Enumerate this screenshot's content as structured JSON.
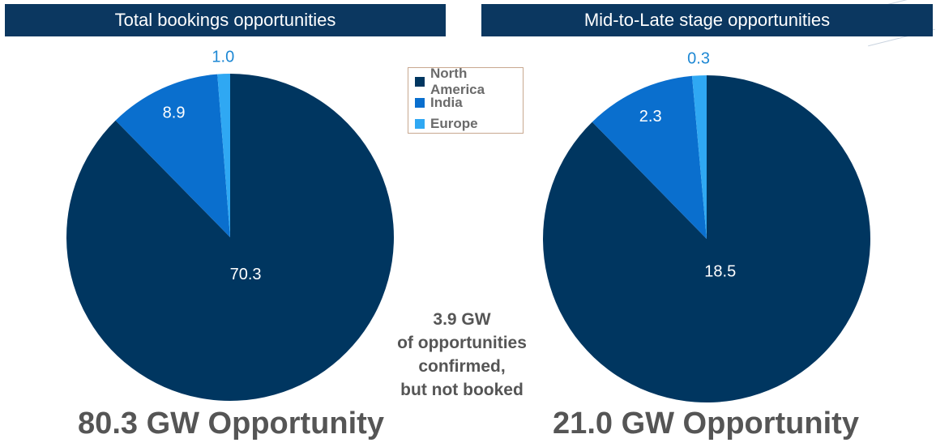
{
  "colors": {
    "header_bg": "#0b3760",
    "north_america": "#003660",
    "india": "#0a6fce",
    "europe": "#2fa8f3",
    "europe_label": "#1e88d4"
  },
  "chart_data": [
    {
      "type": "pie",
      "title": "Total bookings opportunities",
      "categories": [
        "North America",
        "India",
        "Europe"
      ],
      "values": [
        70.3,
        8.9,
        1.0
      ],
      "total_label": "80.3 GW Opportunity"
    },
    {
      "type": "pie",
      "title": "Mid-to-Late stage opportunities",
      "categories": [
        "North America",
        "India",
        "Europe"
      ],
      "values": [
        18.5,
        2.3,
        0.3
      ],
      "total_label": "21.0 GW Opportunity"
    }
  ],
  "legend": {
    "items": [
      {
        "label": "North America",
        "color": "#003660"
      },
      {
        "label": "India",
        "color": "#0a6fce"
      },
      {
        "label": "Europe",
        "color": "#2fa8f3"
      }
    ]
  },
  "note": {
    "lines": [
      "3.9 GW",
      "of opportunities",
      "confirmed,",
      "but not booked"
    ]
  }
}
